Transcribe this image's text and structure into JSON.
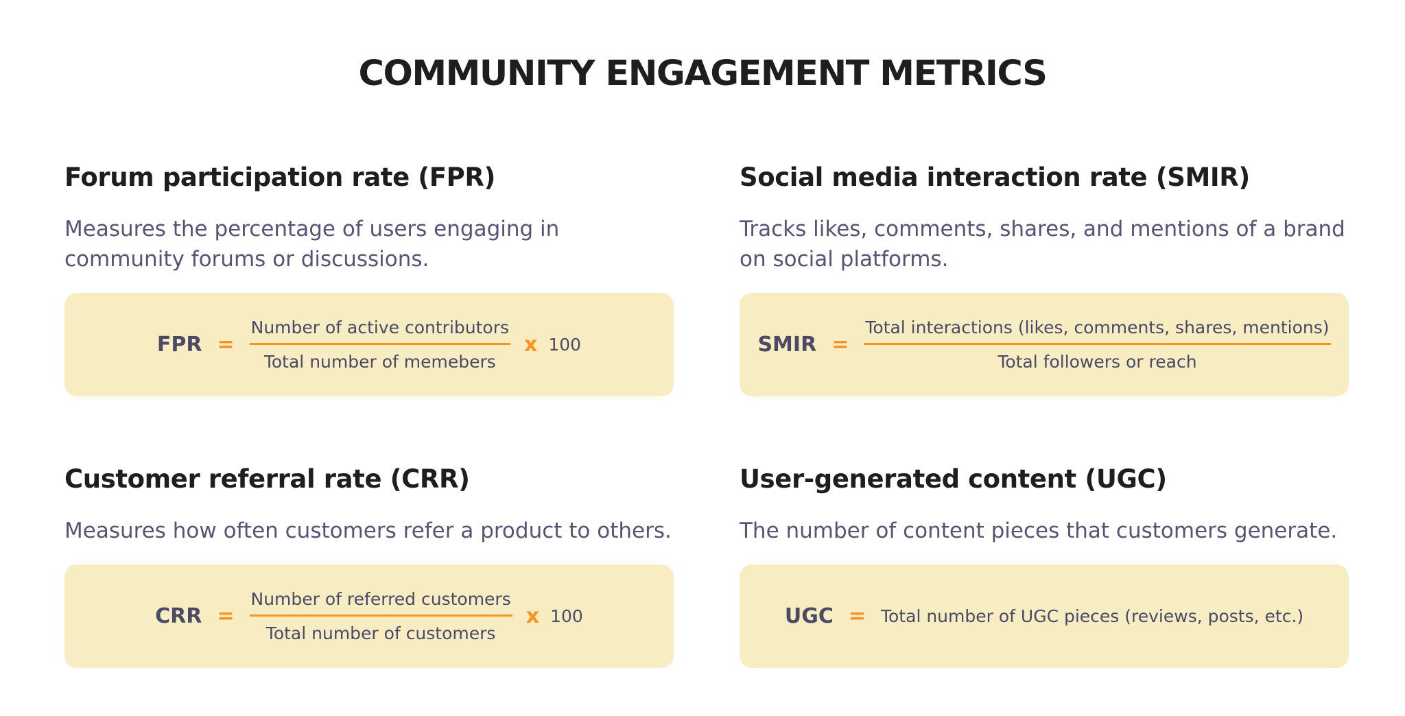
{
  "title": "COMMUNITY ENGAGEMENT METRICS",
  "colors": {
    "accent": "#f7931e",
    "box_background": "#f8edc2",
    "heading": "#1e1e1e",
    "body_text": "#545474"
  },
  "metrics": [
    {
      "title": "Forum participation rate (FPR)",
      "description": "Measures the percentage of users engaging in community forums or discussions.",
      "formula": {
        "abbr": "FPR",
        "equals": "=",
        "numerator": "Number of active contributors",
        "denominator": "Total number of memebers",
        "times": "x",
        "multiplier": "100"
      }
    },
    {
      "title": "Social media interaction rate (SMIR)",
      "description": "Tracks likes, comments, shares, and mentions of a brand on social platforms.",
      "formula": {
        "abbr": "SMIR",
        "equals": "=",
        "numerator": "Total interactions (likes, comments, shares, mentions)",
        "denominator": "Total followers or reach"
      }
    },
    {
      "title": "Customer referral rate (CRR)",
      "description": "Measures how often customers refer a product to others.",
      "formula": {
        "abbr": "CRR",
        "equals": "=",
        "numerator": "Number of referred customers",
        "denominator": "Total number of customers",
        "times": "x",
        "multiplier": "100"
      }
    },
    {
      "title": "User-generated content (UGC)",
      "description": "The number of content pieces that customers generate.",
      "formula": {
        "abbr": "UGC",
        "equals": "=",
        "expression": "Total number of UGC pieces (reviews, posts, etc.)"
      }
    }
  ]
}
